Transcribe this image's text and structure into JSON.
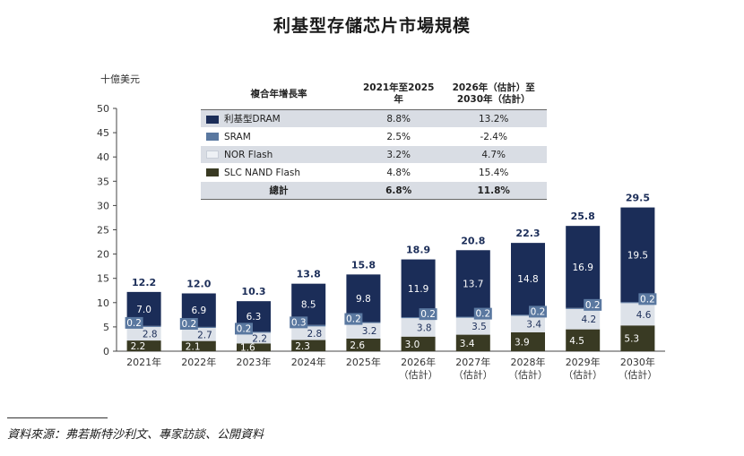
{
  "chart_data": {
    "type": "bar",
    "stacked": true,
    "title": "利基型存儲芯片市場規模",
    "ylabel": "十億美元",
    "ylim": [
      0,
      50
    ],
    "yticks": [
      0,
      5,
      10,
      15,
      20,
      25,
      30,
      35,
      40,
      45,
      50
    ],
    "categories": [
      "2021年",
      "2022年",
      "2023年",
      "2024年",
      "2025年",
      "2026年",
      "2027年",
      "2028年",
      "2029年",
      "2030年"
    ],
    "category_sub": [
      "",
      "",
      "",
      "",
      "",
      "（估計）",
      "（估計）",
      "（估計）",
      "（估計）",
      "（估計）"
    ],
    "series": [
      {
        "name": "SLC NAND Flash",
        "color": "#393a23",
        "label_color": "#ffffff",
        "values": [
          2.2,
          2.1,
          1.6,
          2.3,
          2.6,
          3.0,
          3.4,
          3.9,
          4.5,
          5.3
        ]
      },
      {
        "name": "NOR Flash",
        "color": "#dde2e9",
        "label_color": "#1b2d58",
        "values": [
          2.8,
          2.7,
          2.2,
          2.8,
          3.2,
          3.8,
          3.5,
          3.4,
          4.2,
          4.6
        ]
      },
      {
        "name": "SRAM",
        "color": "#5a78a0",
        "label_color": "#1b2d58",
        "values": [
          0.2,
          0.2,
          0.2,
          0.3,
          0.2,
          0.2,
          0.2,
          0.2,
          0.2,
          0.2
        ]
      },
      {
        "name": "利基型DRAM",
        "color": "#1b2d58",
        "label_color": "#ffffff",
        "values": [
          7.0,
          6.9,
          6.3,
          8.5,
          9.8,
          11.9,
          13.7,
          14.8,
          16.9,
          19.5
        ]
      }
    ],
    "totals": [
      "12.2",
      "12.0",
      "10.3",
      "13.8",
      "15.8",
      "18.9",
      "20.8",
      "22.3",
      "25.8",
      "29.5"
    ],
    "grid": false
  },
  "cagr_table": {
    "headers": [
      "複合年增長率",
      "2021年至2025年",
      "2026年（估計）至2030年（估計）"
    ],
    "rows": [
      {
        "name": "利基型DRAM",
        "color": "#1b2d58",
        "c1": "8.8%",
        "c2": "13.2%"
      },
      {
        "name": "SRAM",
        "color": "#5a78a0",
        "c1": "2.5%",
        "c2": "-2.4%"
      },
      {
        "name": "NOR Flash",
        "color": "#dde2e9",
        "c1": "3.2%",
        "c2": "4.7%"
      },
      {
        "name": "SLC NAND Flash",
        "color": "#393a23",
        "c1": "4.8%",
        "c2": "15.4%"
      }
    ],
    "total": {
      "name": "總計",
      "c1": "6.8%",
      "c2": "11.8%"
    }
  },
  "source": "資料來源：弗若斯特沙利文、專家訪談、公開資料"
}
